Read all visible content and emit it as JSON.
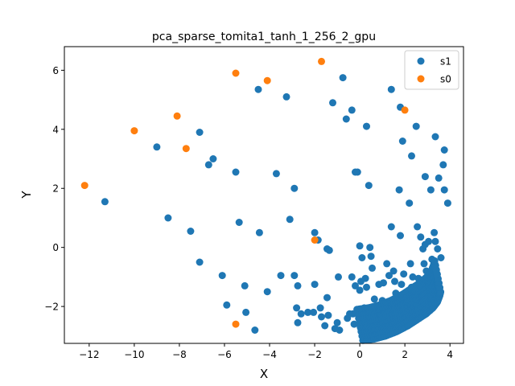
{
  "chart_data": {
    "type": "scatter",
    "title": "pca_sparse_tomita1_tanh_1_256_2_gpu",
    "xlabel": "X",
    "ylabel": "Y",
    "xlim": [
      -13.1,
      4.6
    ],
    "ylim": [
      -3.25,
      6.8
    ],
    "xticks": [
      -12,
      -10,
      -8,
      -6,
      -4,
      -2,
      0,
      2,
      4
    ],
    "yticks": [
      -2,
      0,
      2,
      4,
      6
    ],
    "grid": false,
    "legend_position": "top-right",
    "colors": {
      "s1": "#1f77b4",
      "s0": "#ff7f0e"
    },
    "series": [
      {
        "name": "s1",
        "points": [
          [
            -11.3,
            1.55
          ],
          [
            -9.0,
            3.4
          ],
          [
            -8.5,
            1.0
          ],
          [
            -7.5,
            0.55
          ],
          [
            -7.1,
            3.9
          ],
          [
            -7.1,
            -0.5
          ],
          [
            -6.7,
            2.8
          ],
          [
            -6.5,
            3.0
          ],
          [
            -6.1,
            -0.95
          ],
          [
            -5.9,
            -1.95
          ],
          [
            -5.5,
            2.55
          ],
          [
            -5.35,
            0.85
          ],
          [
            -5.1,
            -1.3
          ],
          [
            -5.05,
            -2.2
          ],
          [
            -4.65,
            -2.8
          ],
          [
            -4.5,
            5.35
          ],
          [
            -4.45,
            0.5
          ],
          [
            -4.1,
            -1.5
          ],
          [
            -3.7,
            2.5
          ],
          [
            -3.5,
            -0.95
          ],
          [
            -3.25,
            5.1
          ],
          [
            -3.1,
            0.95
          ],
          [
            -2.9,
            2.0
          ],
          [
            -2.9,
            -0.95
          ],
          [
            -2.75,
            -1.3
          ],
          [
            -2.8,
            -2.05
          ],
          [
            -2.75,
            -2.55
          ],
          [
            -2.3,
            -2.2
          ],
          [
            -2.05,
            -2.2
          ],
          [
            -2.0,
            0.5
          ],
          [
            -2.0,
            -1.25
          ],
          [
            -1.85,
            0.25
          ],
          [
            -1.75,
            -2.05
          ],
          [
            -1.7,
            -2.35
          ],
          [
            -1.55,
            -2.65
          ],
          [
            -1.45,
            -1.7
          ],
          [
            -1.45,
            -0.05
          ],
          [
            -1.4,
            -2.3
          ],
          [
            -1.35,
            -0.1
          ],
          [
            -1.2,
            4.9
          ],
          [
            -1.1,
            -2.75
          ],
          [
            -0.95,
            -1.0
          ],
          [
            -0.9,
            -2.8
          ],
          [
            -0.75,
            5.75
          ],
          [
            -0.6,
            4.35
          ],
          [
            -0.55,
            -2.4
          ],
          [
            -0.35,
            4.65
          ],
          [
            -0.35,
            -1.0
          ],
          [
            -0.3,
            -2.25
          ],
          [
            -0.25,
            -2.6
          ],
          [
            -0.1,
            2.55
          ],
          [
            0.05,
            -2.75
          ],
          [
            0.05,
            -1.15
          ],
          [
            0.0,
            0.05
          ],
          [
            0.1,
            -0.35
          ],
          [
            0.15,
            -2.4
          ],
          [
            0.25,
            -1.05
          ],
          [
            0.3,
            4.1
          ],
          [
            0.4,
            2.1
          ],
          [
            0.45,
            0.0
          ],
          [
            0.5,
            -0.3
          ],
          [
            0.5,
            -2.6
          ],
          [
            0.55,
            -0.7
          ],
          [
            0.6,
            -2.3
          ],
          [
            0.65,
            -1.75
          ],
          [
            0.7,
            -2.05
          ],
          [
            0.75,
            -2.5
          ],
          [
            0.85,
            -1.25
          ],
          [
            0.9,
            -2.2
          ],
          [
            1.05,
            -1.2
          ],
          [
            1.1,
            -2.4
          ],
          [
            1.15,
            -2.65
          ],
          [
            1.2,
            -0.55
          ],
          [
            1.3,
            -0.95
          ],
          [
            1.35,
            -2.15
          ],
          [
            1.4,
            0.7
          ],
          [
            1.5,
            -0.8
          ],
          [
            1.55,
            -1.15
          ],
          [
            1.6,
            -1.55
          ],
          [
            1.65,
            -1.9
          ],
          [
            1.7,
            -2.35
          ],
          [
            1.75,
            1.95
          ],
          [
            1.8,
            0.4
          ],
          [
            1.85,
            -1.25
          ],
          [
            1.9,
            3.6
          ],
          [
            1.95,
            -0.9
          ],
          [
            2.05,
            -1.6
          ],
          [
            2.1,
            -2.25
          ],
          [
            2.2,
            1.5
          ],
          [
            2.25,
            -0.55
          ],
          [
            2.3,
            3.1
          ],
          [
            2.35,
            -1.0
          ],
          [
            2.45,
            -1.85
          ],
          [
            2.5,
            4.1
          ],
          [
            2.55,
            0.7
          ],
          [
            2.6,
            -1.35
          ],
          [
            2.7,
            0.35
          ],
          [
            2.75,
            -2.0
          ],
          [
            2.8,
            -0.05
          ],
          [
            2.85,
            -0.55
          ],
          [
            2.9,
            2.4
          ],
          [
            2.95,
            -1.15
          ],
          [
            3.0,
            -1.65
          ],
          [
            3.05,
            0.2
          ],
          [
            3.15,
            1.95
          ],
          [
            3.2,
            -0.4
          ],
          [
            3.25,
            -1.05
          ],
          [
            3.3,
            0.5
          ],
          [
            3.35,
            3.75
          ],
          [
            3.45,
            -0.05
          ],
          [
            3.5,
            2.35
          ],
          [
            3.55,
            -1.55
          ],
          [
            3.6,
            -0.35
          ],
          [
            3.7,
            2.8
          ],
          [
            3.75,
            3.3
          ],
          [
            3.75,
            1.95
          ],
          [
            3.9,
            1.5
          ],
          [
            1.4,
            5.35
          ],
          [
            1.8,
            4.75
          ],
          [
            -0.2,
            2.55
          ],
          [
            2.1,
            -2.5
          ],
          [
            1.95,
            -2.3
          ],
          [
            2.4,
            -2.15
          ],
          [
            2.7,
            -1.75
          ],
          [
            3.05,
            -1.45
          ],
          [
            3.3,
            -1.3
          ],
          [
            2.3,
            -1.35
          ],
          [
            2.6,
            -1.05
          ],
          [
            2.95,
            -0.8
          ],
          [
            0.85,
            -2.55
          ],
          [
            1.25,
            -2.5
          ],
          [
            1.55,
            -2.45
          ],
          [
            3.35,
            0.2
          ],
          [
            2.9,
            0.1
          ],
          [
            0.3,
            -1.35
          ],
          [
            0.0,
            -1.45
          ],
          [
            -0.2,
            -1.3
          ],
          [
            1.0,
            -1.8
          ],
          [
            -2.6,
            -2.25
          ],
          [
            -1.0,
            -2.55
          ],
          [
            -0.45,
            -2.25
          ],
          [
            0.2,
            -2.05
          ]
        ]
      },
      {
        "name": "s0",
        "points": [
          [
            -12.2,
            2.1
          ],
          [
            -10.0,
            3.95
          ],
          [
            -8.1,
            4.45
          ],
          [
            -7.7,
            3.35
          ],
          [
            -5.5,
            5.9
          ],
          [
            -4.1,
            5.65
          ],
          [
            -1.7,
            6.3
          ],
          [
            2.0,
            4.65
          ],
          [
            -2.0,
            0.25
          ],
          [
            -5.5,
            -2.6
          ]
        ]
      }
    ],
    "dense_cluster": {
      "series": "s1",
      "curve": [
        [
          0.0,
          -2.6
        ],
        [
          0.5,
          -2.55
        ],
        [
          1.0,
          -2.45
        ],
        [
          1.5,
          -2.3
        ],
        [
          2.0,
          -2.1
        ],
        [
          2.4,
          -1.9
        ],
        [
          2.8,
          -1.7
        ],
        [
          3.1,
          -1.5
        ],
        [
          3.3,
          -1.3
        ],
        [
          3.4,
          -1.1
        ],
        [
          3.45,
          -0.95
        ]
      ],
      "offsets": [
        -0.55,
        -0.4,
        -0.25,
        -0.1,
        0.05,
        0.2,
        0.35,
        0.5
      ]
    }
  }
}
